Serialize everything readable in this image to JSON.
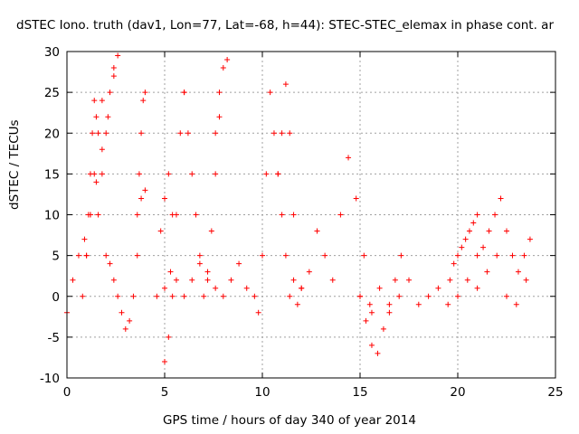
{
  "chart_data": {
    "type": "scatter",
    "title": "dSTEC Iono. truth (dav1, Lon=77, Lat=-68, h=44): STEC-STEC_elemax in phase cont. ar",
    "xlabel": "GPS time / hours of day 340 of year 2014",
    "ylabel": "dSTEC  / TECUs",
    "xlim": [
      0,
      25
    ],
    "ylim": [
      -10,
      30
    ],
    "xticks": [
      0,
      5,
      10,
      15,
      20,
      25
    ],
    "yticks": [
      -10,
      -5,
      0,
      5,
      10,
      15,
      20,
      25,
      30
    ],
    "grid": true,
    "marker": "+",
    "marker_color": "#ff0000",
    "series": [
      {
        "x": [
          0.0,
          0.3,
          0.6,
          0.9,
          1.2,
          1.5,
          1.8,
          2.1,
          2.4,
          2.6
        ],
        "y": [
          -2,
          2,
          5,
          7,
          10,
          14,
          18,
          22,
          27,
          29.5
        ]
      },
      {
        "x": [
          0.8,
          1.0,
          1.2,
          1.4,
          1.6,
          1.8
        ],
        "y": [
          0,
          5,
          10,
          15,
          20,
          24
        ]
      },
      {
        "x": [
          1.0,
          1.1,
          1.2,
          1.3,
          1.4,
          1.5
        ],
        "y": [
          5,
          10,
          15,
          20,
          24,
          22
        ]
      },
      {
        "x": [
          1.6,
          1.8,
          2.0,
          2.2,
          2.4
        ],
        "y": [
          10,
          15,
          20,
          25,
          28
        ]
      },
      {
        "x": [
          2.0,
          2.2,
          2.4,
          2.6,
          2.8,
          3.0,
          3.2,
          3.4,
          3.6,
          3.8,
          4.0
        ],
        "y": [
          5,
          4,
          2,
          0,
          -2,
          -4,
          -3,
          0,
          5,
          12,
          13
        ]
      },
      {
        "x": [
          3.6,
          3.7,
          3.8,
          3.9,
          4.0
        ],
        "y": [
          10,
          15,
          20,
          24,
          25
        ]
      },
      {
        "x": [
          4.6,
          4.8,
          5.0,
          5.2,
          5.4
        ],
        "y": [
          0,
          8,
          12,
          15,
          10
        ]
      },
      {
        "x": [
          5.0,
          5.2,
          5.4,
          5.6,
          5.8,
          6.0
        ],
        "y": [
          -8,
          -5,
          0,
          10,
          20,
          25
        ]
      },
      {
        "x": [
          6.0,
          6.2,
          6.4,
          6.6,
          6.8,
          7.0,
          7.2,
          7.4,
          7.6,
          7.8
        ],
        "y": [
          25,
          20,
          15,
          10,
          5,
          0,
          2,
          8,
          15,
          22
        ]
      },
      {
        "x": [
          7.6,
          7.8,
          8.0,
          8.2
        ],
        "y": [
          20,
          25,
          28,
          29
        ]
      },
      {
        "x": [
          5.0,
          5.3,
          5.6,
          6.0,
          6.4,
          6.8,
          7.2,
          7.6,
          8.0,
          8.4,
          8.8,
          9.2,
          9.6
        ],
        "y": [
          1,
          3,
          2,
          0,
          2,
          4,
          3,
          1,
          0,
          2,
          4,
          1,
          0
        ]
      },
      {
        "x": [
          9.8,
          10.0,
          10.2,
          10.4,
          10.6,
          10.8,
          11.0,
          11.2,
          11.4,
          11.6,
          11.8,
          12.0
        ],
        "y": [
          -2,
          5,
          15,
          25,
          20,
          15,
          10,
          5,
          0,
          2,
          -1,
          1
        ]
      },
      {
        "x": [
          10.8,
          11.0,
          11.2,
          11.4,
          11.6
        ],
        "y": [
          15,
          20,
          26,
          20,
          10
        ]
      },
      {
        "x": [
          12.0,
          12.4,
          12.8,
          13.2,
          13.6,
          14.0,
          14.4,
          14.8,
          15.2,
          15.6
        ],
        "y": [
          1,
          3,
          8,
          5,
          2,
          10,
          17,
          12,
          5,
          -2
        ]
      },
      {
        "x": [
          15.0,
          15.3,
          15.6,
          15.9,
          16.2,
          16.5,
          16.8,
          17.1
        ],
        "y": [
          0,
          -3,
          -6,
          -7,
          -4,
          -1,
          2,
          5
        ]
      },
      {
        "x": [
          15.0,
          15.5,
          16.0,
          16.5,
          17.0,
          17.5,
          18.0,
          18.5,
          19.0,
          19.5,
          20.0,
          20.5,
          21.0,
          21.5,
          22.0,
          22.5,
          23.0,
          23.5
        ],
        "y": [
          0,
          -1,
          1,
          -2,
          0,
          2,
          -1,
          0,
          1,
          -1,
          0,
          2,
          1,
          3,
          5,
          0,
          -1,
          2
        ]
      },
      {
        "x": [
          21.0,
          21.3,
          21.6,
          21.9,
          22.2,
          22.5,
          22.8,
          23.1,
          23.4,
          23.7
        ],
        "y": [
          5,
          6,
          8,
          10,
          12,
          8,
          5,
          3,
          5,
          7
        ]
      },
      {
        "x": [
          19.6,
          19.8,
          20.0,
          20.2,
          20.4,
          20.6,
          20.8,
          21.0
        ],
        "y": [
          2,
          4,
          5,
          6,
          7,
          8,
          9,
          10
        ]
      }
    ]
  }
}
